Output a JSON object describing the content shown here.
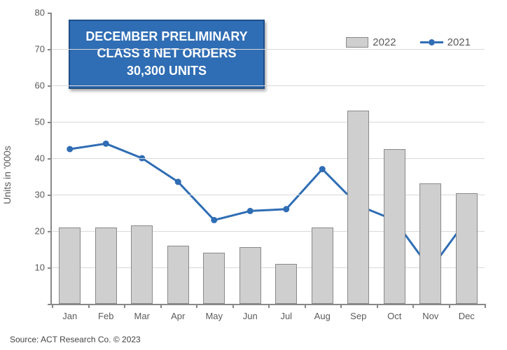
{
  "chart": {
    "type": "bar+line",
    "y_axis_title": "Units in '000s",
    "ylim": [
      0,
      80
    ],
    "ytick_step": 10,
    "categories": [
      "Jan",
      "Feb",
      "Mar",
      "Apr",
      "May",
      "Jun",
      "Jul",
      "Aug",
      "Sep",
      "Oct",
      "Nov",
      "Dec"
    ],
    "bars": {
      "series_label": "2022",
      "values": [
        21,
        21,
        21.5,
        16,
        14,
        15.5,
        11,
        21,
        53,
        42.5,
        33,
        30.3
      ],
      "fill_color": "#cfcfcf",
      "border_color": "#8a8a8a",
      "bar_width_fraction": 0.6
    },
    "line": {
      "series_label": "2021",
      "values": [
        42.5,
        44,
        40,
        33.5,
        23,
        25.5,
        26,
        37,
        27,
        23,
        9.5,
        23
      ],
      "color": "#2f6db4",
      "line_width": 3,
      "marker": "circle",
      "marker_size": 9
    },
    "grid_color": "#d9d9d9",
    "axis_color": "#888888",
    "background_color": "#ffffff",
    "label_fontsize": 13,
    "label_color": "#5a5a5a"
  },
  "callout": {
    "line1": "DECEMBER PRELIMINARY",
    "line2": "CLASS 8 NET ORDERS",
    "line3": "30,300  UNITS",
    "bg_color": "#2f6db4",
    "border_color": "#1d4e89",
    "text_color": "#ffffff",
    "fontsize": 18
  },
  "legend": {
    "items": [
      {
        "key": "bars",
        "label": "2022"
      },
      {
        "key": "line",
        "label": "2021"
      }
    ]
  },
  "source": "Source: ACT Research Co. © 2023"
}
